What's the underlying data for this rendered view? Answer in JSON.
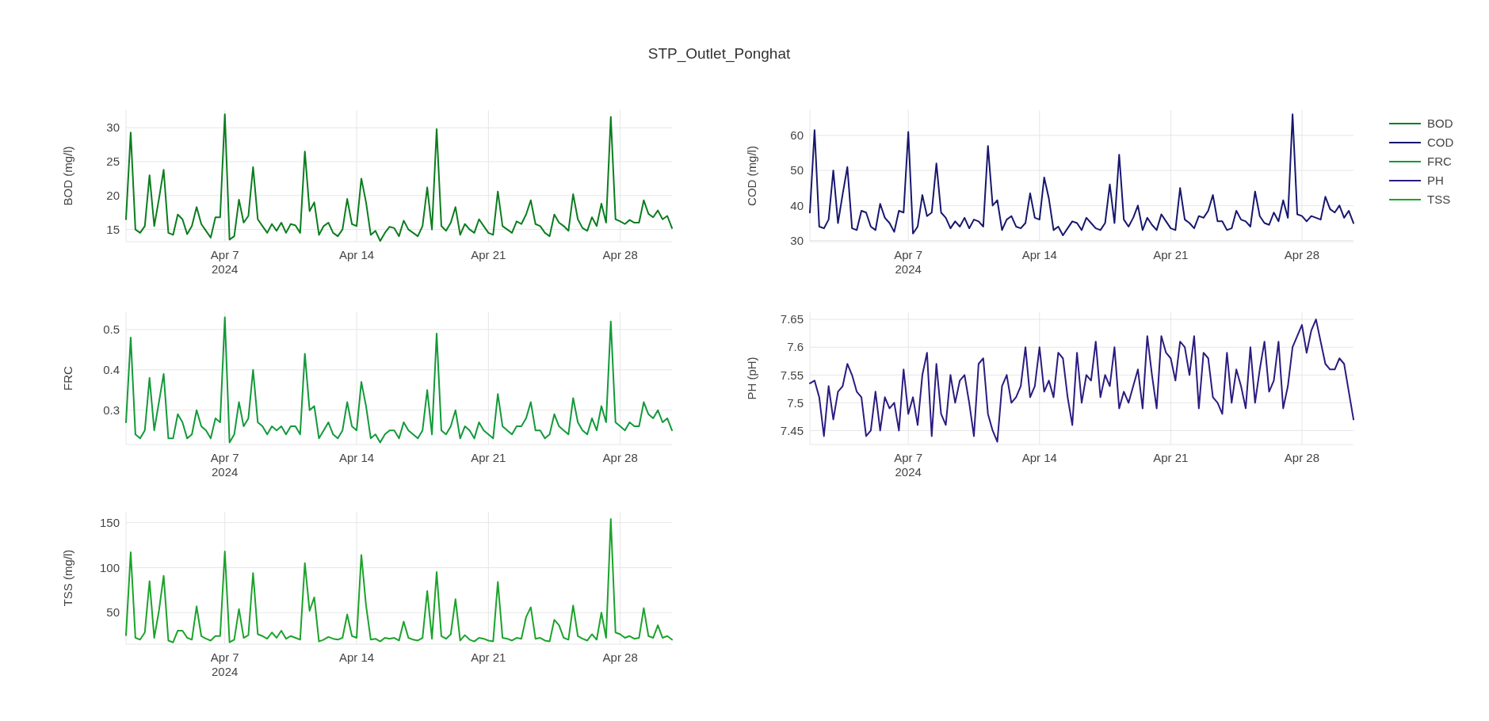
{
  "chart_data": [
    {
      "type": "line",
      "title": "STP_Outlet_Ponghat",
      "ylabel": "BOD (mg/l)",
      "legend": "right",
      "grid": true,
      "x": [
        "2024-04-01T18:00",
        "2024-04-02T00:00",
        "2024-04-02T06:00",
        "2024-04-02T12:00",
        "2024-04-02T18:00",
        "2024-04-03T00:00",
        "2024-04-03T06:00",
        "2024-04-03T12:00",
        "2024-04-03T18:00",
        "2024-04-04T00:00",
        "2024-04-04T06:00",
        "2024-04-04T12:00",
        "2024-04-04T18:00",
        "2024-04-05T00:00",
        "2024-04-05T06:00",
        "2024-04-05T12:00",
        "2024-04-05T18:00",
        "2024-04-06T00:00",
        "2024-04-06T06:00",
        "2024-04-06T12:00",
        "2024-04-06T18:00",
        "2024-04-07T00:00",
        "2024-04-07T06:00",
        "2024-04-07T12:00",
        "2024-04-07T18:00",
        "2024-04-08T00:00",
        "2024-04-08T06:00",
        "2024-04-08T12:00",
        "2024-04-08T18:00",
        "2024-04-09T00:00",
        "2024-04-09T06:00",
        "2024-04-09T12:00",
        "2024-04-09T18:00",
        "2024-04-10T00:00",
        "2024-04-10T06:00",
        "2024-04-10T12:00",
        "2024-04-10T18:00",
        "2024-04-11T00:00",
        "2024-04-11T06:00",
        "2024-04-11T12:00",
        "2024-04-11T18:00",
        "2024-04-12T00:00",
        "2024-04-12T06:00",
        "2024-04-12T12:00",
        "2024-04-12T18:00",
        "2024-04-13T00:00",
        "2024-04-13T06:00",
        "2024-04-13T12:00",
        "2024-04-13T18:00",
        "2024-04-14T00:00",
        "2024-04-14T06:00",
        "2024-04-14T12:00",
        "2024-04-14T18:00",
        "2024-04-15T00:00",
        "2024-04-15T06:00",
        "2024-04-15T12:00",
        "2024-04-15T18:00",
        "2024-04-16T00:00",
        "2024-04-16T06:00",
        "2024-04-16T12:00",
        "2024-04-16T18:00",
        "2024-04-17T00:00",
        "2024-04-17T06:00",
        "2024-04-17T12:00",
        "2024-04-17T18:00",
        "2024-04-18T00:00",
        "2024-04-18T06:00",
        "2024-04-18T12:00",
        "2024-04-18T18:00",
        "2024-04-19T00:00",
        "2024-04-19T06:00",
        "2024-04-19T12:00",
        "2024-04-19T18:00",
        "2024-04-20T00:00",
        "2024-04-20T06:00",
        "2024-04-20T12:00",
        "2024-04-20T18:00",
        "2024-04-21T00:00",
        "2024-04-21T06:00",
        "2024-04-21T12:00",
        "2024-04-21T18:00",
        "2024-04-22T00:00",
        "2024-04-22T06:00",
        "2024-04-22T12:00",
        "2024-04-22T18:00",
        "2024-04-23T00:00",
        "2024-04-23T06:00",
        "2024-04-23T12:00",
        "2024-04-23T18:00",
        "2024-04-24T00:00",
        "2024-04-24T06:00",
        "2024-04-24T12:00",
        "2024-04-24T18:00",
        "2024-04-25T00:00",
        "2024-04-25T06:00",
        "2024-04-25T12:00",
        "2024-04-25T18:00",
        "2024-04-26T00:00",
        "2024-04-26T06:00",
        "2024-04-26T12:00",
        "2024-04-26T18:00",
        "2024-04-27T00:00",
        "2024-04-27T06:00",
        "2024-04-27T12:00",
        "2024-04-27T18:00",
        "2024-04-28T00:00",
        "2024-04-28T06:00",
        "2024-04-28T12:00",
        "2024-04-28T18:00",
        "2024-04-29T00:00",
        "2024-04-29T06:00",
        "2024-04-29T12:00",
        "2024-04-29T18:00",
        "2024-04-30T00:00",
        "2024-04-30T06:00",
        "2024-04-30T12:00",
        "2024-04-30T18:00"
      ],
      "xlim": [
        "2024-04-01T18:00",
        "2024-04-30T18:00"
      ],
      "xticks": [
        {
          "value": "2024-04-07",
          "label": "Apr 7\n2024"
        },
        {
          "value": "2024-04-14",
          "label": "Apr 14"
        },
        {
          "value": "2024-04-21",
          "label": "Apr 21"
        },
        {
          "value": "2024-04-28",
          "label": "Apr 28"
        }
      ],
      "ylim": [
        13.2,
        32.6
      ],
      "yticks": [
        15,
        20,
        25,
        30
      ],
      "series": [
        {
          "name": "BOD",
          "color": "#0b7d1f",
          "values": [
            16.5,
            29.3,
            15,
            14.5,
            15.5,
            23,
            15.5,
            19.5,
            23.8,
            14.5,
            14.2,
            17.2,
            16.5,
            14.3,
            15.5,
            18.3,
            15.8,
            14.8,
            13.8,
            16.8,
            16.8,
            32,
            13.5,
            14,
            19.4,
            16,
            17,
            24.2,
            16.5,
            15.5,
            14.5,
            15.8,
            14.8,
            16,
            14.5,
            15.8,
            15.6,
            14.5,
            26.5,
            17.7,
            19,
            14.2,
            15.5,
            16,
            14.5,
            14,
            15,
            19.5,
            15.8,
            15.5,
            22.5,
            19,
            14.2,
            14.8,
            13.3,
            14.5,
            15.4,
            15.2,
            14,
            16.3,
            15,
            14.5,
            14,
            15.5,
            21.2,
            15,
            29.8,
            15.5,
            14.8,
            16,
            18.3,
            14.2,
            15.8,
            15,
            14.5,
            16.5,
            15.5,
            14.5,
            14.2,
            20.6,
            15.5,
            15,
            14.5,
            16.2,
            15.8,
            17.2,
            19.3,
            15.8,
            15.5,
            14.5,
            14,
            17.2,
            16,
            15.5,
            14.8,
            20.2,
            16.5,
            15.2,
            14.8,
            16.8,
            15.5,
            18.8,
            16,
            31.6,
            16.5,
            16.2,
            15.8,
            16.4,
            16,
            16,
            19.3,
            17.3,
            16.8,
            17.8,
            16.5,
            17,
            15.2
          ]
        }
      ]
    },
    {
      "type": "line",
      "ylabel": "COD (mg/l)",
      "legend": "right",
      "grid": true,
      "x": [
        "2024-04-01T18:00",
        "2024-04-02T00:00",
        "2024-04-02T06:00",
        "2024-04-02T12:00",
        "2024-04-02T18:00",
        "2024-04-03T00:00",
        "2024-04-03T06:00",
        "2024-04-03T12:00",
        "2024-04-03T18:00",
        "2024-04-04T00:00",
        "2024-04-04T06:00",
        "2024-04-04T12:00",
        "2024-04-04T18:00",
        "2024-04-05T00:00",
        "2024-04-05T06:00",
        "2024-04-05T12:00",
        "2024-04-05T18:00",
        "2024-04-06T00:00",
        "2024-04-06T06:00",
        "2024-04-06T12:00",
        "2024-04-06T18:00",
        "2024-04-07T00:00",
        "2024-04-07T06:00",
        "2024-04-07T12:00",
        "2024-04-07T18:00",
        "2024-04-08T00:00",
        "2024-04-08T06:00",
        "2024-04-08T12:00",
        "2024-04-08T18:00",
        "2024-04-09T00:00",
        "2024-04-09T06:00",
        "2024-04-09T12:00",
        "2024-04-09T18:00",
        "2024-04-10T00:00",
        "2024-04-10T06:00",
        "2024-04-10T12:00",
        "2024-04-10T18:00",
        "2024-04-11T00:00",
        "2024-04-11T06:00",
        "2024-04-11T12:00",
        "2024-04-11T18:00",
        "2024-04-12T00:00",
        "2024-04-12T06:00",
        "2024-04-12T12:00",
        "2024-04-12T18:00",
        "2024-04-13T00:00",
        "2024-04-13T06:00",
        "2024-04-13T12:00",
        "2024-04-13T18:00",
        "2024-04-14T00:00",
        "2024-04-14T06:00",
        "2024-04-14T12:00",
        "2024-04-14T18:00",
        "2024-04-15T00:00",
        "2024-04-15T06:00",
        "2024-04-15T12:00",
        "2024-04-15T18:00",
        "2024-04-16T00:00",
        "2024-04-16T06:00",
        "2024-04-16T12:00",
        "2024-04-16T18:00",
        "2024-04-17T00:00",
        "2024-04-17T06:00",
        "2024-04-17T12:00",
        "2024-04-17T18:00",
        "2024-04-18T00:00",
        "2024-04-18T06:00",
        "2024-04-18T12:00",
        "2024-04-18T18:00",
        "2024-04-19T00:00",
        "2024-04-19T06:00",
        "2024-04-19T12:00",
        "2024-04-19T18:00",
        "2024-04-20T00:00",
        "2024-04-20T06:00",
        "2024-04-20T12:00",
        "2024-04-20T18:00",
        "2024-04-21T00:00",
        "2024-04-21T06:00",
        "2024-04-21T12:00",
        "2024-04-21T18:00",
        "2024-04-22T00:00",
        "2024-04-22T06:00",
        "2024-04-22T12:00",
        "2024-04-22T18:00",
        "2024-04-23T00:00",
        "2024-04-23T06:00",
        "2024-04-23T12:00",
        "2024-04-23T18:00",
        "2024-04-24T00:00",
        "2024-04-24T06:00",
        "2024-04-24T12:00",
        "2024-04-24T18:00",
        "2024-04-25T00:00",
        "2024-04-25T06:00",
        "2024-04-25T12:00",
        "2024-04-25T18:00",
        "2024-04-26T00:00",
        "2024-04-26T06:00",
        "2024-04-26T12:00",
        "2024-04-26T18:00",
        "2024-04-27T00:00",
        "2024-04-27T06:00",
        "2024-04-27T12:00",
        "2024-04-27T18:00",
        "2024-04-28T00:00",
        "2024-04-28T06:00",
        "2024-04-28T12:00",
        "2024-04-28T18:00",
        "2024-04-29T00:00",
        "2024-04-29T06:00",
        "2024-04-29T12:00",
        "2024-04-29T18:00",
        "2024-04-30T00:00",
        "2024-04-30T06:00",
        "2024-04-30T12:00",
        "2024-04-30T18:00"
      ],
      "xlim": [
        "2024-04-01T18:00",
        "2024-04-30T18:00"
      ],
      "xticks": [
        {
          "value": "2024-04-07",
          "label": "Apr 7\n2024"
        },
        {
          "value": "2024-04-14",
          "label": "Apr 14"
        },
        {
          "value": "2024-04-21",
          "label": "Apr 21"
        },
        {
          "value": "2024-04-28",
          "label": "Apr 28"
        }
      ],
      "ylim": [
        29.7,
        67.2
      ],
      "yticks": [
        30,
        40,
        50,
        60
      ],
      "series": [
        {
          "name": "COD",
          "color": "#17176e",
          "values": [
            38,
            61.5,
            34,
            33.5,
            36,
            50,
            35,
            43.3,
            51,
            33.5,
            33,
            38.5,
            38,
            34,
            33,
            40.5,
            36.5,
            35,
            32.5,
            38.5,
            38,
            61,
            32,
            34,
            43,
            37,
            38,
            52,
            38,
            36.5,
            33.5,
            35.5,
            34,
            36.5,
            33.5,
            36,
            35.5,
            34,
            57,
            40,
            41.5,
            33,
            36,
            37,
            34,
            33.5,
            35,
            43.5,
            36.5,
            36,
            48,
            42,
            33,
            34,
            31.5,
            33.5,
            35.5,
            35,
            33,
            36.5,
            35,
            33.5,
            33,
            35,
            46,
            35,
            54.5,
            36,
            34,
            36.5,
            40,
            33,
            36.5,
            34.5,
            33,
            37.5,
            35.5,
            33.5,
            33,
            45,
            36,
            35,
            33.5,
            37,
            36.5,
            38.5,
            43,
            35.5,
            35.5,
            33,
            33.5,
            38.5,
            36,
            35.5,
            34,
            44,
            37,
            35,
            34.5,
            38,
            35.5,
            41.5,
            36.5,
            66,
            37.5,
            37,
            35.5,
            37,
            36.5,
            36,
            42.5,
            39,
            38,
            40,
            36.5,
            38.5,
            35
          ]
        }
      ]
    },
    {
      "type": "line",
      "ylabel": "FRC",
      "legend": "right",
      "grid": true,
      "x": [
        "2024-04-01T18:00",
        "2024-04-02T00:00",
        "2024-04-02T06:00",
        "2024-04-02T12:00",
        "2024-04-02T18:00",
        "2024-04-03T00:00",
        "2024-04-03T06:00",
        "2024-04-03T12:00",
        "2024-04-03T18:00",
        "2024-04-04T00:00",
        "2024-04-04T06:00",
        "2024-04-04T12:00",
        "2024-04-04T18:00",
        "2024-04-05T00:00",
        "2024-04-05T06:00",
        "2024-04-05T12:00",
        "2024-04-05T18:00",
        "2024-04-06T00:00",
        "2024-04-06T06:00",
        "2024-04-06T12:00",
        "2024-04-06T18:00",
        "2024-04-07T00:00",
        "2024-04-07T06:00",
        "2024-04-07T12:00",
        "2024-04-07T18:00",
        "2024-04-08T00:00",
        "2024-04-08T06:00",
        "2024-04-08T12:00",
        "2024-04-08T18:00",
        "2024-04-09T00:00",
        "2024-04-09T06:00",
        "2024-04-09T12:00",
        "2024-04-09T18:00",
        "2024-04-10T00:00",
        "2024-04-10T06:00",
        "2024-04-10T12:00",
        "2024-04-10T18:00",
        "2024-04-11T00:00",
        "2024-04-11T06:00",
        "2024-04-11T12:00",
        "2024-04-11T18:00",
        "2024-04-12T00:00",
        "2024-04-12T06:00",
        "2024-04-12T12:00",
        "2024-04-12T18:00",
        "2024-04-13T00:00",
        "2024-04-13T06:00",
        "2024-04-13T12:00",
        "2024-04-13T18:00",
        "2024-04-14T00:00",
        "2024-04-14T06:00",
        "2024-04-14T12:00",
        "2024-04-14T18:00",
        "2024-04-15T00:00",
        "2024-04-15T06:00",
        "2024-04-15T12:00",
        "2024-04-15T18:00",
        "2024-04-16T00:00",
        "2024-04-16T06:00",
        "2024-04-16T12:00",
        "2024-04-16T18:00",
        "2024-04-17T00:00",
        "2024-04-17T06:00",
        "2024-04-17T12:00",
        "2024-04-17T18:00",
        "2024-04-18T00:00",
        "2024-04-18T06:00",
        "2024-04-18T12:00",
        "2024-04-18T18:00",
        "2024-04-19T00:00",
        "2024-04-19T06:00",
        "2024-04-19T12:00",
        "2024-04-19T18:00",
        "2024-04-20T00:00",
        "2024-04-20T06:00",
        "2024-04-20T12:00",
        "2024-04-20T18:00",
        "2024-04-21T00:00",
        "2024-04-21T06:00",
        "2024-04-21T12:00",
        "2024-04-21T18:00",
        "2024-04-22T00:00",
        "2024-04-22T06:00",
        "2024-04-22T12:00",
        "2024-04-22T18:00",
        "2024-04-23T00:00",
        "2024-04-23T06:00",
        "2024-04-23T12:00",
        "2024-04-23T18:00",
        "2024-04-24T00:00",
        "2024-04-24T06:00",
        "2024-04-24T12:00",
        "2024-04-24T18:00",
        "2024-04-25T00:00",
        "2024-04-25T06:00",
        "2024-04-25T12:00",
        "2024-04-25T18:00",
        "2024-04-26T00:00",
        "2024-04-26T06:00",
        "2024-04-26T12:00",
        "2024-04-26T18:00",
        "2024-04-27T00:00",
        "2024-04-27T06:00",
        "2024-04-27T12:00",
        "2024-04-27T18:00",
        "2024-04-28T00:00",
        "2024-04-28T06:00",
        "2024-04-28T12:00",
        "2024-04-28T18:00",
        "2024-04-29T00:00",
        "2024-04-29T06:00",
        "2024-04-29T12:00",
        "2024-04-29T18:00",
        "2024-04-30T00:00",
        "2024-04-30T06:00",
        "2024-04-30T12:00",
        "2024-04-30T18:00"
      ],
      "xlim": [
        "2024-04-01T18:00",
        "2024-04-30T18:00"
      ],
      "xticks": [
        {
          "value": "2024-04-07",
          "label": "Apr 7\n2024"
        },
        {
          "value": "2024-04-14",
          "label": "Apr 14"
        },
        {
          "value": "2024-04-21",
          "label": "Apr 21"
        },
        {
          "value": "2024-04-28",
          "label": "Apr 28"
        }
      ],
      "ylim": [
        0.215,
        0.543
      ],
      "yticks": [
        0.3,
        0.4,
        0.5
      ],
      "series": [
        {
          "name": "FRC",
          "color": "#13993a",
          "values": [
            0.27,
            0.48,
            0.24,
            0.23,
            0.25,
            0.38,
            0.25,
            0.32,
            0.39,
            0.23,
            0.23,
            0.29,
            0.27,
            0.23,
            0.24,
            0.3,
            0.26,
            0.25,
            0.23,
            0.28,
            0.27,
            0.53,
            0.22,
            0.24,
            0.32,
            0.26,
            0.28,
            0.4,
            0.27,
            0.26,
            0.24,
            0.26,
            0.25,
            0.26,
            0.24,
            0.26,
            0.26,
            0.24,
            0.44,
            0.3,
            0.31,
            0.23,
            0.25,
            0.27,
            0.24,
            0.23,
            0.25,
            0.32,
            0.26,
            0.25,
            0.37,
            0.31,
            0.23,
            0.24,
            0.22,
            0.24,
            0.25,
            0.25,
            0.23,
            0.27,
            0.25,
            0.24,
            0.23,
            0.25,
            0.35,
            0.24,
            0.49,
            0.25,
            0.24,
            0.26,
            0.3,
            0.23,
            0.26,
            0.25,
            0.23,
            0.27,
            0.25,
            0.24,
            0.23,
            0.34,
            0.26,
            0.25,
            0.24,
            0.26,
            0.26,
            0.28,
            0.32,
            0.25,
            0.25,
            0.23,
            0.24,
            0.29,
            0.26,
            0.25,
            0.24,
            0.33,
            0.27,
            0.25,
            0.24,
            0.28,
            0.25,
            0.31,
            0.27,
            0.52,
            0.27,
            0.26,
            0.25,
            0.27,
            0.26,
            0.26,
            0.32,
            0.29,
            0.28,
            0.3,
            0.27,
            0.28,
            0.25
          ]
        }
      ]
    },
    {
      "type": "line",
      "ylabel": "PH (pH)",
      "legend": "right",
      "grid": true,
      "x": [
        "2024-04-01T18:00",
        "2024-04-02T00:00",
        "2024-04-02T06:00",
        "2024-04-02T12:00",
        "2024-04-02T18:00",
        "2024-04-03T00:00",
        "2024-04-03T06:00",
        "2024-04-03T12:00",
        "2024-04-03T18:00",
        "2024-04-04T00:00",
        "2024-04-04T06:00",
        "2024-04-04T12:00",
        "2024-04-04T18:00",
        "2024-04-05T00:00",
        "2024-04-05T06:00",
        "2024-04-05T12:00",
        "2024-04-05T18:00",
        "2024-04-06T00:00",
        "2024-04-06T06:00",
        "2024-04-06T12:00",
        "2024-04-06T18:00",
        "2024-04-07T00:00",
        "2024-04-07T06:00",
        "2024-04-07T12:00",
        "2024-04-07T18:00",
        "2024-04-08T00:00",
        "2024-04-08T06:00",
        "2024-04-08T12:00",
        "2024-04-08T18:00",
        "2024-04-09T00:00",
        "2024-04-09T06:00",
        "2024-04-09T12:00",
        "2024-04-09T18:00",
        "2024-04-10T00:00",
        "2024-04-10T06:00",
        "2024-04-10T12:00",
        "2024-04-10T18:00",
        "2024-04-11T00:00",
        "2024-04-11T06:00",
        "2024-04-11T12:00",
        "2024-04-11T18:00",
        "2024-04-12T00:00",
        "2024-04-12T06:00",
        "2024-04-12T12:00",
        "2024-04-12T18:00",
        "2024-04-13T00:00",
        "2024-04-13T06:00",
        "2024-04-13T12:00",
        "2024-04-13T18:00",
        "2024-04-14T00:00",
        "2024-04-14T06:00",
        "2024-04-14T12:00",
        "2024-04-14T18:00",
        "2024-04-15T00:00",
        "2024-04-15T06:00",
        "2024-04-15T12:00",
        "2024-04-15T18:00",
        "2024-04-16T00:00",
        "2024-04-16T06:00",
        "2024-04-16T12:00",
        "2024-04-16T18:00",
        "2024-04-17T00:00",
        "2024-04-17T06:00",
        "2024-04-17T12:00",
        "2024-04-17T18:00",
        "2024-04-18T00:00",
        "2024-04-18T06:00",
        "2024-04-18T12:00",
        "2024-04-18T18:00",
        "2024-04-19T00:00",
        "2024-04-19T06:00",
        "2024-04-19T12:00",
        "2024-04-19T18:00",
        "2024-04-20T00:00",
        "2024-04-20T06:00",
        "2024-04-20T12:00",
        "2024-04-20T18:00",
        "2024-04-21T00:00",
        "2024-04-21T06:00",
        "2024-04-21T12:00",
        "2024-04-21T18:00",
        "2024-04-22T00:00",
        "2024-04-22T06:00",
        "2024-04-22T12:00",
        "2024-04-22T18:00",
        "2024-04-23T00:00",
        "2024-04-23T06:00",
        "2024-04-23T12:00",
        "2024-04-23T18:00",
        "2024-04-24T00:00",
        "2024-04-24T06:00",
        "2024-04-24T12:00",
        "2024-04-24T18:00",
        "2024-04-25T00:00",
        "2024-04-25T06:00",
        "2024-04-25T12:00",
        "2024-04-25T18:00",
        "2024-04-26T00:00",
        "2024-04-26T06:00",
        "2024-04-26T12:00",
        "2024-04-26T18:00",
        "2024-04-27T00:00",
        "2024-04-27T06:00",
        "2024-04-27T12:00",
        "2024-04-27T18:00",
        "2024-04-28T00:00",
        "2024-04-28T06:00",
        "2024-04-28T12:00",
        "2024-04-28T18:00",
        "2024-04-29T00:00",
        "2024-04-29T06:00",
        "2024-04-29T12:00",
        "2024-04-29T18:00",
        "2024-04-30T00:00",
        "2024-04-30T06:00",
        "2024-04-30T12:00",
        "2024-04-30T18:00"
      ],
      "xlim": [
        "2024-04-01T18:00",
        "2024-04-30T18:00"
      ],
      "xticks": [
        {
          "value": "2024-04-07",
          "label": "Apr 7\n2024"
        },
        {
          "value": "2024-04-14",
          "label": "Apr 14"
        },
        {
          "value": "2024-04-21",
          "label": "Apr 21"
        },
        {
          "value": "2024-04-28",
          "label": "Apr 28"
        }
      ],
      "ylim": [
        7.425,
        7.663
      ],
      "yticks": [
        7.45,
        7.5,
        7.55,
        7.6,
        7.65
      ],
      "series": [
        {
          "name": "PH",
          "color": "#2d1b80",
          "values": [
            7.535,
            7.54,
            7.51,
            7.44,
            7.53,
            7.47,
            7.52,
            7.53,
            7.57,
            7.55,
            7.52,
            7.51,
            7.44,
            7.45,
            7.52,
            7.45,
            7.51,
            7.49,
            7.5,
            7.45,
            7.56,
            7.48,
            7.51,
            7.46,
            7.55,
            7.59,
            7.44,
            7.57,
            7.48,
            7.46,
            7.55,
            7.5,
            7.54,
            7.55,
            7.5,
            7.44,
            7.57,
            7.58,
            7.48,
            7.45,
            7.43,
            7.53,
            7.55,
            7.5,
            7.51,
            7.53,
            7.6,
            7.51,
            7.53,
            7.6,
            7.52,
            7.54,
            7.51,
            7.59,
            7.58,
            7.51,
            7.46,
            7.59,
            7.5,
            7.55,
            7.54,
            7.61,
            7.51,
            7.55,
            7.53,
            7.6,
            7.49,
            7.52,
            7.5,
            7.53,
            7.56,
            7.49,
            7.62,
            7.55,
            7.49,
            7.62,
            7.59,
            7.58,
            7.54,
            7.61,
            7.6,
            7.55,
            7.62,
            7.49,
            7.59,
            7.58,
            7.51,
            7.5,
            7.48,
            7.59,
            7.5,
            7.56,
            7.53,
            7.49,
            7.6,
            7.5,
            7.56,
            7.61,
            7.52,
            7.54,
            7.61,
            7.49,
            7.53,
            7.6,
            7.62,
            7.64,
            7.59,
            7.63,
            7.65,
            7.61,
            7.57,
            7.56,
            7.56,
            7.58,
            7.57,
            7.52,
            7.47
          ]
        }
      ]
    },
    {
      "type": "line",
      "ylabel": "TSS (mg/l)",
      "legend": "right",
      "grid": true,
      "x": [
        "2024-04-01T18:00",
        "2024-04-02T00:00",
        "2024-04-02T06:00",
        "2024-04-02T12:00",
        "2024-04-02T18:00",
        "2024-04-03T00:00",
        "2024-04-03T06:00",
        "2024-04-03T12:00",
        "2024-04-03T18:00",
        "2024-04-04T00:00",
        "2024-04-04T06:00",
        "2024-04-04T12:00",
        "2024-04-04T18:00",
        "2024-04-05T00:00",
        "2024-04-05T06:00",
        "2024-04-05T12:00",
        "2024-04-05T18:00",
        "2024-04-06T00:00",
        "2024-04-06T06:00",
        "2024-04-06T12:00",
        "2024-04-06T18:00",
        "2024-04-07T00:00",
        "2024-04-07T06:00",
        "2024-04-07T12:00",
        "2024-04-07T18:00",
        "2024-04-08T00:00",
        "2024-04-08T06:00",
        "2024-04-08T12:00",
        "2024-04-08T18:00",
        "2024-04-09T00:00",
        "2024-04-09T06:00",
        "2024-04-09T12:00",
        "2024-04-09T18:00",
        "2024-04-10T00:00",
        "2024-04-10T06:00",
        "2024-04-10T12:00",
        "2024-04-10T18:00",
        "2024-04-11T00:00",
        "2024-04-11T06:00",
        "2024-04-11T12:00",
        "2024-04-11T18:00",
        "2024-04-12T00:00",
        "2024-04-12T06:00",
        "2024-04-12T12:00",
        "2024-04-12T18:00",
        "2024-04-13T00:00",
        "2024-04-13T06:00",
        "2024-04-13T12:00",
        "2024-04-13T18:00",
        "2024-04-14T00:00",
        "2024-04-14T06:00",
        "2024-04-14T12:00",
        "2024-04-14T18:00",
        "2024-04-15T00:00",
        "2024-04-15T06:00",
        "2024-04-15T12:00",
        "2024-04-15T18:00",
        "2024-04-16T00:00",
        "2024-04-16T06:00",
        "2024-04-16T12:00",
        "2024-04-16T18:00",
        "2024-04-17T00:00",
        "2024-04-17T06:00",
        "2024-04-17T12:00",
        "2024-04-17T18:00",
        "2024-04-18T00:00",
        "2024-04-18T06:00",
        "2024-04-18T12:00",
        "2024-04-18T18:00",
        "2024-04-19T00:00",
        "2024-04-19T06:00",
        "2024-04-19T12:00",
        "2024-04-19T18:00",
        "2024-04-20T00:00",
        "2024-04-20T06:00",
        "2024-04-20T12:00",
        "2024-04-20T18:00",
        "2024-04-21T00:00",
        "2024-04-21T06:00",
        "2024-04-21T12:00",
        "2024-04-21T18:00",
        "2024-04-22T00:00",
        "2024-04-22T06:00",
        "2024-04-22T12:00",
        "2024-04-22T18:00",
        "2024-04-23T00:00",
        "2024-04-23T06:00",
        "2024-04-23T12:00",
        "2024-04-23T18:00",
        "2024-04-24T00:00",
        "2024-04-24T06:00",
        "2024-04-24T12:00",
        "2024-04-24T18:00",
        "2024-04-25T00:00",
        "2024-04-25T06:00",
        "2024-04-25T12:00",
        "2024-04-25T18:00",
        "2024-04-26T00:00",
        "2024-04-26T06:00",
        "2024-04-26T12:00",
        "2024-04-26T18:00",
        "2024-04-27T00:00",
        "2024-04-27T06:00",
        "2024-04-27T12:00",
        "2024-04-27T18:00",
        "2024-04-28T00:00",
        "2024-04-28T06:00",
        "2024-04-28T12:00",
        "2024-04-28T18:00",
        "2024-04-29T00:00",
        "2024-04-29T06:00",
        "2024-04-29T12:00",
        "2024-04-29T18:00",
        "2024-04-30T00:00",
        "2024-04-30T06:00",
        "2024-04-30T12:00",
        "2024-04-30T18:00"
      ],
      "xlim": [
        "2024-04-01T18:00",
        "2024-04-30T18:00"
      ],
      "xticks": [
        {
          "value": "2024-04-07",
          "label": "Apr 7\n2024"
        },
        {
          "value": "2024-04-14",
          "label": "Apr 14"
        },
        {
          "value": "2024-04-21",
          "label": "Apr 21"
        },
        {
          "value": "2024-04-28",
          "label": "Apr 28"
        }
      ],
      "ylim": [
        15,
        162
      ],
      "yticks": [
        50,
        100,
        150
      ],
      "series": [
        {
          "name": "TSS",
          "color": "#1ba32b",
          "values": [
            25,
            117,
            22,
            20,
            28,
            85,
            22,
            52,
            91,
            19,
            17,
            30,
            30,
            22,
            20,
            57,
            24,
            21,
            19,
            24,
            24,
            118,
            17,
            20,
            54,
            22,
            25,
            94,
            26,
            24,
            21,
            28,
            22,
            30,
            21,
            24,
            22,
            20,
            105,
            52,
            67,
            18,
            20,
            23,
            21,
            20,
            22,
            48,
            24,
            22,
            114,
            58,
            20,
            21,
            18,
            22,
            21,
            22,
            19,
            40,
            22,
            20,
            19,
            22,
            74,
            21,
            95,
            24,
            21,
            26,
            65,
            19,
            25,
            20,
            18,
            22,
            21,
            19,
            18,
            84,
            22,
            21,
            19,
            22,
            21,
            45,
            56,
            21,
            22,
            19,
            18,
            42,
            36,
            22,
            20,
            58,
            24,
            21,
            19,
            26,
            20,
            50,
            22,
            154,
            28,
            26,
            22,
            24,
            21,
            22,
            55,
            24,
            22,
            36,
            22,
            24,
            20
          ]
        }
      ]
    }
  ]
}
